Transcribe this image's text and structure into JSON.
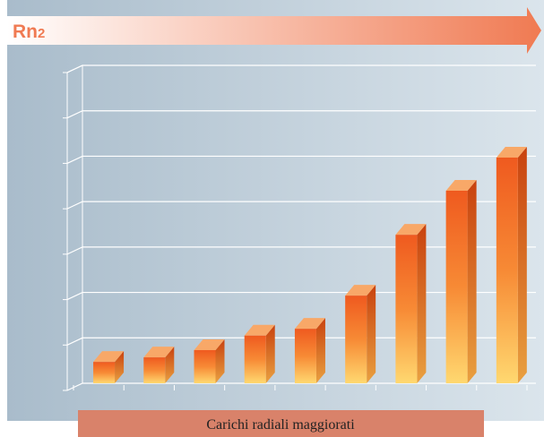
{
  "chart_data": {
    "type": "bar3d",
    "title": "Rn",
    "title_sub": "2",
    "footer": "Carichi radiali maggiorati",
    "categories": [
      null,
      null,
      null,
      null,
      null,
      null,
      null,
      null,
      null
    ],
    "values": [
      0.47,
      0.57,
      0.73,
      1.05,
      1.2,
      1.93,
      3.27,
      4.24,
      4.97
    ],
    "color": "#f05a1e",
    "ylim": [
      0,
      7
    ],
    "yticks": [
      0,
      1,
      2,
      3,
      4,
      5,
      6,
      7
    ],
    "grid": true
  }
}
